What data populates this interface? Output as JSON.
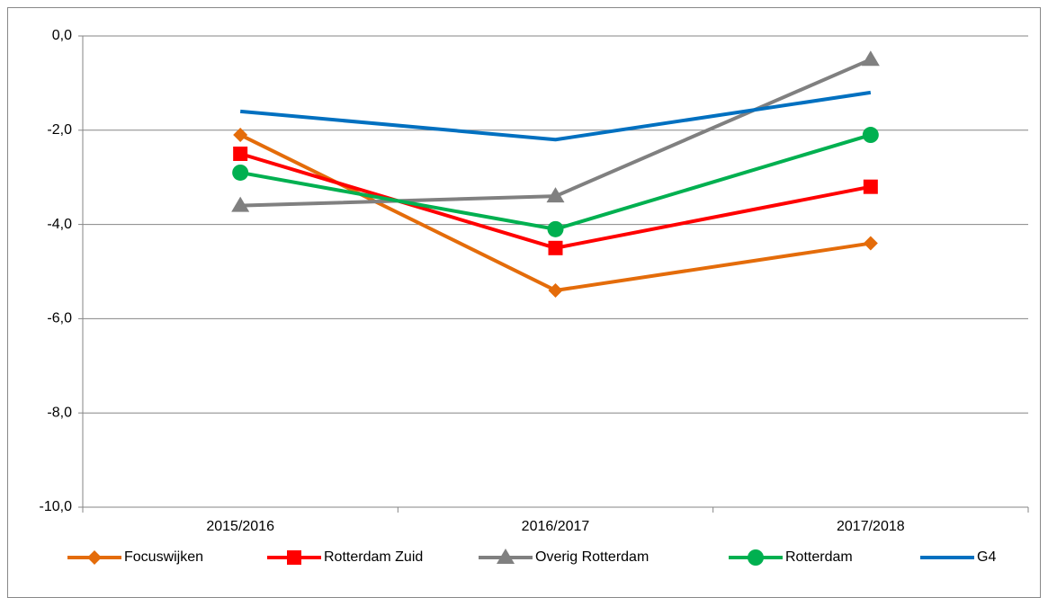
{
  "chart_data": {
    "type": "line",
    "categories": [
      "2015/2016",
      "2016/2017",
      "2017/2018"
    ],
    "series": [
      {
        "name": "Focuswijken",
        "color": "#e46c0a",
        "marker": "diamond",
        "values": [
          -2.1,
          -5.4,
          -4.4
        ]
      },
      {
        "name": "Rotterdam Zuid",
        "color": "#ff0000",
        "marker": "square",
        "values": [
          -2.5,
          -4.5,
          -3.2
        ]
      },
      {
        "name": "Overig Rotterdam",
        "color": "#808080",
        "marker": "triangle",
        "values": [
          -3.6,
          -3.4,
          -0.5
        ]
      },
      {
        "name": "Rotterdam",
        "color": "#00b050",
        "marker": "circle",
        "values": [
          -2.9,
          -4.1,
          -2.1
        ]
      },
      {
        "name": "G4",
        "color": "#0070c0",
        "marker": "none",
        "values": [
          -1.6,
          -2.2,
          -1.2
        ]
      }
    ],
    "ylim": [
      -10,
      0
    ],
    "yticks": [
      {
        "value": -10,
        "label": "-10,0"
      },
      {
        "value": -8,
        "label": "-8,0"
      },
      {
        "value": -6,
        "label": "-6,0"
      },
      {
        "value": -4,
        "label": "-4,0"
      },
      {
        "value": -2,
        "label": "-2,0"
      },
      {
        "value": 0,
        "label": "0,0"
      }
    ],
    "grid": true,
    "legend": "bottom"
  }
}
